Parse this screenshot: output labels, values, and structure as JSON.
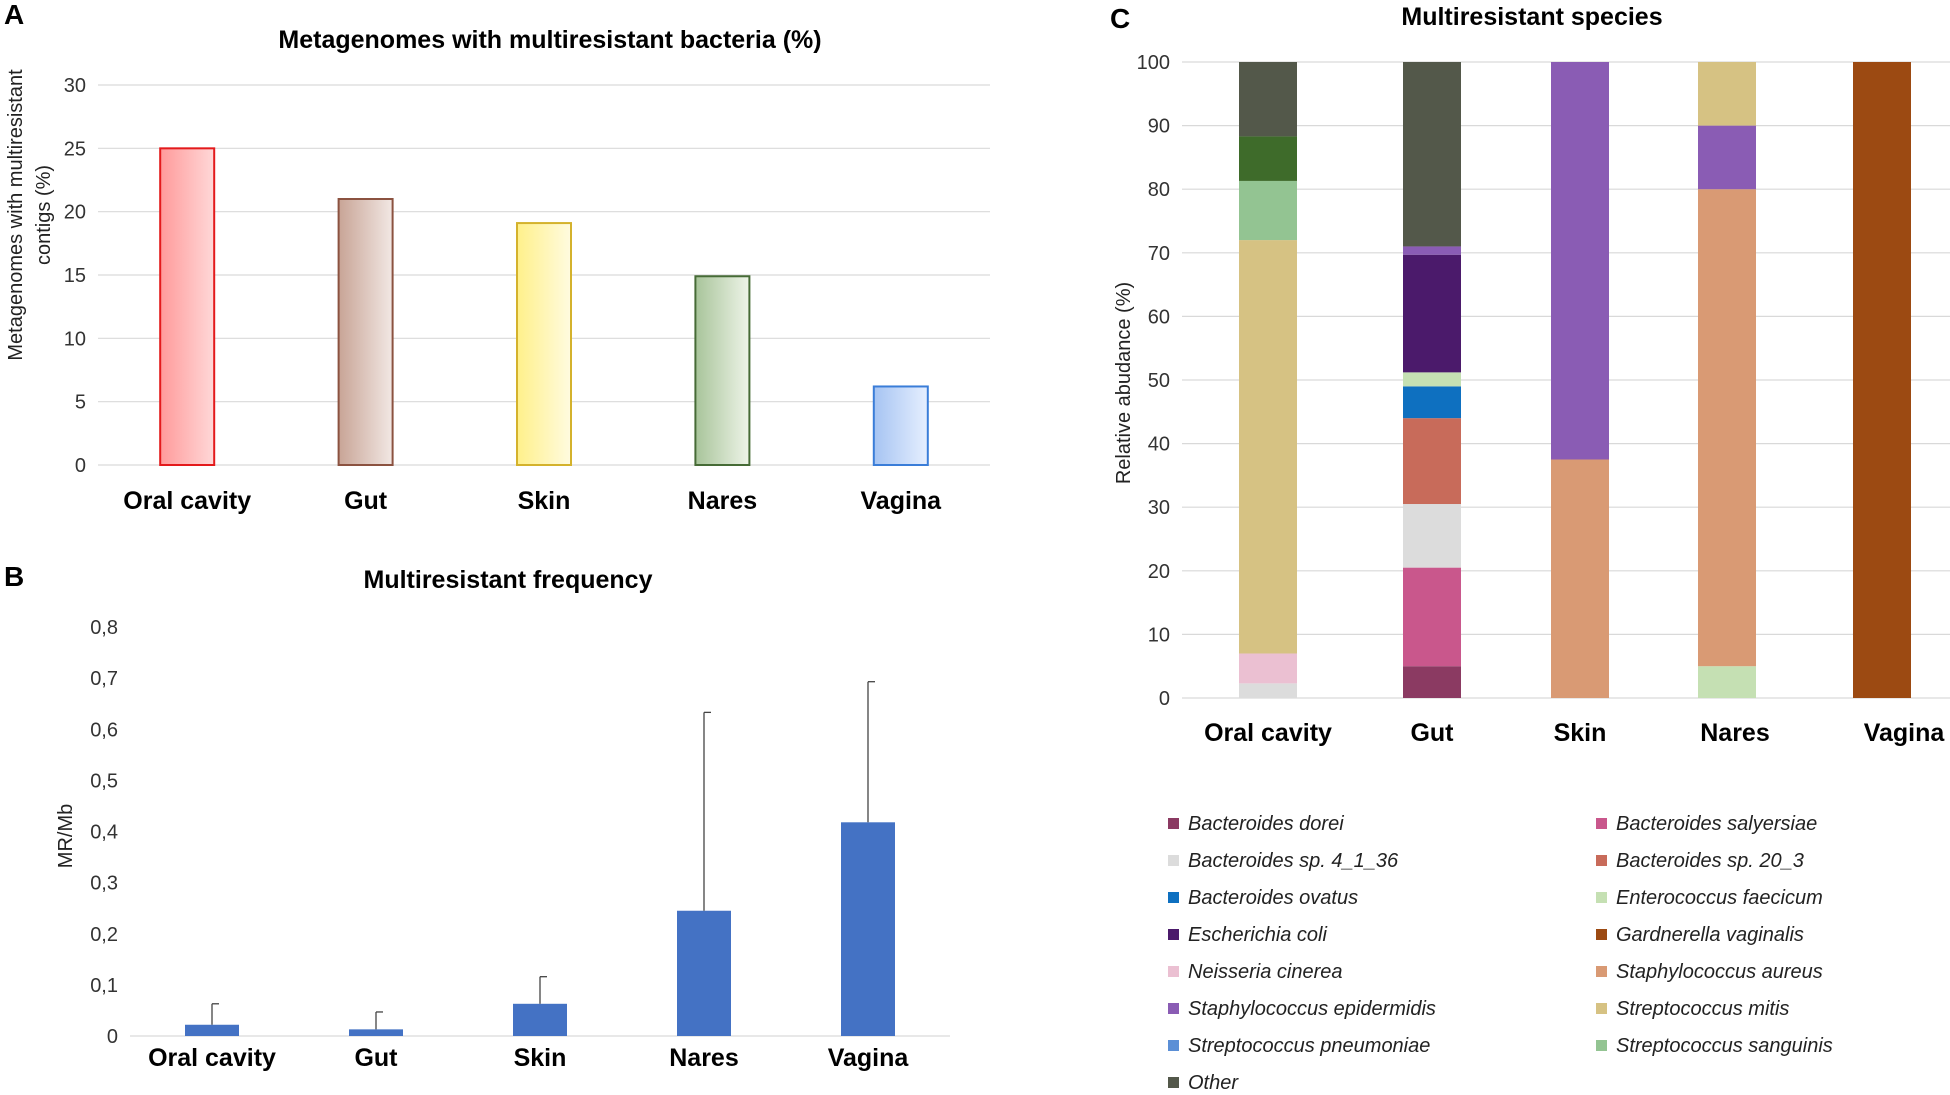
{
  "panel_labels": {
    "a": "A",
    "b": "B",
    "c": "C"
  },
  "chart_data": [
    {
      "id": "A",
      "type": "bar",
      "title": "Metagenomes with multiresistant bacteria (%)",
      "ylabel_lines": [
        "Metagenomes with multiresistant",
        "contigs (%)"
      ],
      "xlabel": "",
      "categories": [
        "Oral cavity",
        "Gut",
        "Skin",
        "Nares",
        "Vagina"
      ],
      "values": [
        25,
        21,
        19.1,
        14.9,
        6.2
      ],
      "colors": [
        {
          "stroke": "#e31a1c",
          "top": "#ff9a9a",
          "bottom": "#ffd8d8"
        },
        {
          "stroke": "#8b5240",
          "top": "#c8a496",
          "bottom": "#f2e8e4"
        },
        {
          "stroke": "#d4b22c",
          "top": "#fff08a",
          "bottom": "#fffbe0"
        },
        {
          "stroke": "#466b36",
          "top": "#a8c49a",
          "bottom": "#eef4e8"
        },
        {
          "stroke": "#3a7dd8",
          "top": "#a6c4f2",
          "bottom": "#e6efff"
        }
      ],
      "ylim": [
        0,
        30
      ],
      "yticks": [
        0,
        5,
        10,
        15,
        20,
        25,
        30
      ],
      "ytick_labels": [
        "0",
        "5",
        "10",
        "15",
        "20",
        "25",
        "30"
      ],
      "grid": true
    },
    {
      "id": "B",
      "type": "bar",
      "title": "Multiresistant frequency",
      "ylabel": "MR/Mb",
      "xlabel": "",
      "categories": [
        "Oral cavity",
        "Gut",
        "Skin",
        "Nares",
        "Vagina"
      ],
      "values": [
        0.022,
        0.013,
        0.063,
        0.245,
        0.418
      ],
      "error_upper": [
        0.063,
        0.047,
        0.116,
        0.633,
        0.693
      ],
      "bar_color": "#4472c4",
      "ylim": [
        0,
        0.8
      ],
      "yticks": [
        0,
        0.1,
        0.2,
        0.3,
        0.4,
        0.5,
        0.6,
        0.7,
        0.8
      ],
      "ytick_labels": [
        "0",
        "0,1",
        "0,2",
        "0,3",
        "0,4",
        "0,5",
        "0,6",
        "0,7",
        "0,8"
      ],
      "grid": false
    },
    {
      "id": "C",
      "type": "bar",
      "stacked": true,
      "title": "Multiresistant species",
      "ylabel": "Relative abudance (%)",
      "xlabel": "",
      "categories": [
        "Oral cavity",
        "Gut",
        "Skin",
        "Nares",
        "Vagina"
      ],
      "ylim": [
        0,
        100
      ],
      "yticks": [
        0,
        10,
        20,
        30,
        40,
        50,
        60,
        70,
        80,
        90,
        100
      ],
      "ytick_labels": [
        "0",
        "10",
        "20",
        "30",
        "40",
        "50",
        "60",
        "70",
        "80",
        "90",
        "100"
      ],
      "series": [
        {
          "name": "Bacteroides dorei",
          "color": "#8b3a62",
          "values": [
            0,
            5,
            0,
            0,
            0
          ]
        },
        {
          "name": "Bacteroides salyersiae",
          "color": "#c9578c",
          "values": [
            0,
            15.5,
            0,
            0,
            0
          ]
        },
        {
          "name": "Bacteroides sp. 4_1_36",
          "color": "#dcdcdc",
          "values": [
            2.3,
            10,
            0,
            0,
            0
          ]
        },
        {
          "name": "Bacteroides sp. 20_3",
          "color": "#c86b5a",
          "values": [
            0,
            13.5,
            0,
            0,
            0
          ]
        },
        {
          "name": "Bacteroides ovatus",
          "color": "#0e70c0",
          "values": [
            0,
            5,
            0,
            0,
            0
          ]
        },
        {
          "name": "Enterococcus faecicum",
          "color": "#c5e0b3",
          "values": [
            0,
            2.2,
            0,
            5,
            0
          ]
        },
        {
          "name": "Escherichia coli",
          "color": "#4b1a6b",
          "values": [
            0,
            18.5,
            0,
            0,
            0
          ]
        },
        {
          "name": "Gardnerella vaginalis",
          "color": "#9c4a12",
          "values": [
            0,
            0,
            0,
            0,
            100
          ]
        },
        {
          "name": "Neisseria cinerea",
          "color": "#ebc0d2",
          "values": [
            4.7,
            0,
            0,
            0,
            0
          ]
        },
        {
          "name": "Staphylococcus aureus",
          "color": "#d99a74",
          "values": [
            0,
            0,
            37.5,
            75,
            0
          ]
        },
        {
          "name": "Staphylococcus epidermidis",
          "color": "#8a5cb4",
          "values": [
            0,
            1.3,
            62.5,
            10,
            0
          ]
        },
        {
          "name": "Streptococcus mitis",
          "color": "#d6c283",
          "values": [
            65,
            0,
            0,
            10,
            0
          ]
        },
        {
          "name": "Streptococcus pneumoniae",
          "color": "#5b8fd6",
          "values": [
            0,
            0,
            0,
            0,
            0
          ]
        },
        {
          "name": "Streptococcus sanguinis",
          "color": "#93c492",
          "values": [
            9.3,
            0,
            0,
            0,
            0
          ]
        },
        {
          "name": "Other",
          "color": "#53584a",
          "values": [
            0,
            29,
            0,
            0,
            0
          ]
        },
        {
          "name": "oral-dark-green",
          "color": "#3e6b2a",
          "values": [
            7,
            0,
            0,
            0,
            0
          ],
          "legend": false
        },
        {
          "name": "Other",
          "color": "#53584a",
          "values": [
            11.7,
            0,
            0,
            0,
            0
          ],
          "legend": false
        }
      ],
      "legend_order": [
        "Bacteroides dorei",
        "Bacteroides salyersiae",
        "Bacteroides sp. 4_1_36",
        "Bacteroides sp. 20_3",
        "Bacteroides ovatus",
        "Enterococcus faecicum",
        "Escherichia coli",
        "Gardnerella vaginalis",
        "Neisseria cinerea",
        "Staphylococcus aureus",
        "Staphylococcus epidermidis",
        "Streptococcus mitis",
        "Streptococcus pneumoniae",
        "Streptococcus sanguinis",
        "Other"
      ],
      "legend_placement": "bottom",
      "grid": true
    }
  ]
}
